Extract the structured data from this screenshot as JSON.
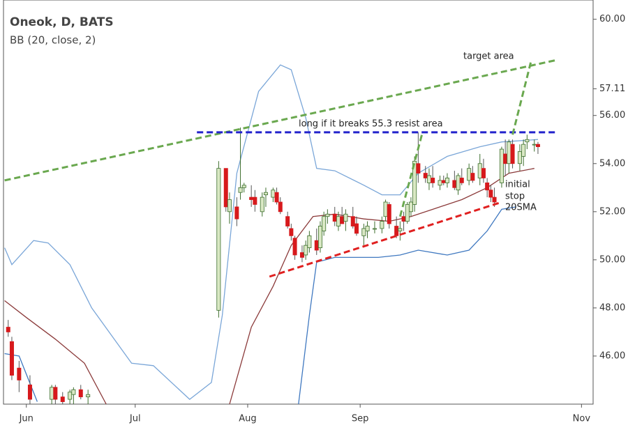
{
  "chart_data": {
    "type": "candlestick",
    "title": "Oneok, D, BATS",
    "subtitle": "BB (20, close, 2)",
    "annotations": [
      "long if it breaks 55.3 resist area",
      "target area",
      "initial",
      "stop",
      "20SMA"
    ],
    "up_color": "#3c6e2c",
    "up_fill": "#d9e8c4",
    "down_color": "#d7191c",
    "xlim": [
      -6.3,
      156.2
    ],
    "xticks": [
      {
        "value": 0,
        "label": "Jun"
      },
      {
        "value": 30,
        "label": "Jul"
      },
      {
        "value": 61,
        "label": "Aug"
      },
      {
        "value": 92,
        "label": "Sep"
      },
      {
        "value": 153,
        "label": "Nov"
      }
    ],
    "ylim": [
      44,
      60.8
    ],
    "yticks": [
      {
        "value": 46,
        "label": "46.00"
      },
      {
        "value": 48,
        "label": "48.00"
      },
      {
        "value": 50,
        "label": "50.00"
      },
      {
        "value": 52,
        "label": "52.00"
      },
      {
        "value": 54,
        "label": "54.00"
      },
      {
        "value": 56,
        "label": "56.00"
      },
      {
        "value": 57.11,
        "label": "57.11"
      },
      {
        "value": 60,
        "label": "60.00"
      }
    ],
    "x": [
      -5,
      -4,
      -2,
      1,
      7,
      8,
      10,
      12,
      13,
      15,
      17,
      53,
      55,
      56,
      58,
      59,
      60,
      62,
      63,
      65,
      66,
      68,
      69,
      70,
      72,
      73,
      74,
      76,
      77,
      78,
      80,
      81,
      82,
      83,
      85,
      86,
      87,
      88,
      90,
      91,
      93,
      94,
      96,
      98,
      99,
      100,
      102,
      103,
      104,
      105,
      106,
      107,
      108,
      110,
      111,
      112,
      114,
      115,
      116,
      118,
      119,
      120,
      122,
      123,
      125,
      126,
      127,
      128,
      129,
      131,
      132,
      133,
      134,
      136,
      137,
      138,
      140,
      141
    ],
    "open": [
      47.2,
      46.6,
      45.5,
      44.8,
      44.2,
      44.7,
      44.3,
      44.2,
      44.4,
      44.6,
      44.3,
      47.9,
      53.8,
      52.0,
      52.2,
      52.8,
      53.0,
      52.6,
      52.6,
      52.0,
      52.7,
      52.6,
      52.8,
      52.4,
      51.8,
      51.3,
      50.9,
      50.3,
      50.2,
      50.5,
      50.8,
      50.5,
      51.2,
      51.8,
      51.9,
      51.4,
      51.8,
      51.6,
      51.8,
      51.5,
      51.0,
      51.2,
      51.3,
      51.3,
      51.8,
      52.3,
      51.4,
      51.2,
      51.8,
      51.6,
      52.0,
      52.3,
      54.0,
      53.6,
      53.2,
      53.4,
      53.1,
      53.3,
      53.2,
      53.3,
      52.9,
      53.4,
      53.3,
      53.6,
      53.4,
      53.8,
      53.2,
      52.9,
      52.6,
      53.2,
      54.4,
      54.0,
      54.8,
      54.0,
      54.3,
      54.9,
      54.8,
      54.8
    ],
    "high": [
      47.5,
      46.8,
      45.8,
      45.2,
      44.8,
      44.8,
      44.5,
      44.6,
      44.7,
      44.8,
      44.6,
      54.1,
      53.8,
      52.8,
      52.6,
      55.5,
      53.2,
      53.1,
      52.9,
      52.8,
      53.0,
      53.0,
      53.0,
      52.6,
      52.0,
      51.5,
      51.0,
      50.6,
      50.8,
      51.2,
      51.3,
      51.6,
      52.0,
      52.1,
      52.2,
      52.0,
      52.2,
      52.1,
      52.2,
      51.8,
      51.5,
      51.6,
      51.6,
      51.8,
      52.5,
      52.4,
      51.8,
      51.6,
      52.0,
      52.4,
      52.6,
      54.3,
      55.3,
      53.9,
      53.8,
      53.9,
      53.5,
      53.5,
      53.6,
      53.7,
      53.6,
      53.8,
      54.0,
      53.9,
      54.4,
      54.2,
      53.4,
      53.1,
      53.0,
      54.7,
      55.0,
      55.0,
      55.0,
      54.8,
      55.0,
      55.2,
      55.0,
      54.9
    ],
    "low": [
      46.8,
      45.0,
      44.5,
      44.0,
      44.0,
      44.0,
      44.0,
      44.0,
      44.0,
      44.2,
      44.0,
      47.6,
      52.0,
      51.5,
      51.4,
      52.5,
      52.8,
      52.2,
      52.0,
      51.8,
      52.2,
      52.4,
      52.3,
      51.9,
      51.3,
      50.8,
      50.0,
      49.9,
      50.0,
      50.3,
      50.2,
      50.3,
      51.0,
      51.5,
      51.4,
      51.2,
      51.5,
      51.2,
      51.3,
      51.0,
      50.6,
      50.9,
      51.1,
      51.1,
      51.6,
      51.3,
      50.9,
      50.8,
      51.2,
      51.5,
      51.8,
      52.0,
      53.2,
      53.2,
      52.9,
      53.0,
      52.9,
      53.1,
      53.0,
      52.9,
      52.7,
      53.1,
      53.1,
      53.2,
      53.1,
      53.2,
      52.6,
      52.4,
      52.2,
      53.0,
      53.5,
      53.6,
      53.8,
      53.7,
      53.9,
      54.6,
      54.5,
      54.4
    ],
    "close": [
      47.0,
      45.2,
      45.0,
      44.2,
      44.7,
      44.2,
      44.1,
      44.5,
      44.6,
      44.3,
      44.4,
      53.8,
      52.2,
      52.5,
      51.7,
      53.0,
      53.1,
      52.5,
      52.3,
      52.6,
      52.8,
      52.9,
      52.4,
      52.0,
      51.4,
      51.0,
      50.2,
      50.1,
      50.6,
      51.0,
      50.4,
      51.4,
      51.8,
      51.9,
      51.6,
      51.8,
      51.5,
      51.9,
      51.4,
      51.1,
      51.3,
      51.4,
      51.3,
      51.6,
      52.4,
      51.5,
      51.0,
      51.3,
      51.6,
      52.3,
      52.4,
      54.1,
      53.6,
      53.4,
      53.5,
      53.2,
      53.3,
      53.2,
      53.4,
      53.0,
      53.5,
      53.2,
      53.8,
      53.3,
      54.0,
      53.4,
      52.9,
      52.6,
      52.4,
      54.6,
      54.0,
      54.9,
      54.0,
      54.5,
      54.8,
      55.0,
      54.8,
      54.7
    ],
    "lines": [
      {
        "color": "#7aa6d8",
        "x": [
          -6,
          -4,
          2,
          6,
          12,
          18,
          29,
          35,
          45,
          51,
          54,
          58,
          64,
          70,
          73,
          77,
          80,
          85,
          93,
          98,
          103,
          108,
          116,
          125,
          131,
          141
        ],
        "values": [
          50.5,
          49.8,
          50.8,
          50.7,
          49.8,
          48.0,
          45.7,
          45.6,
          44.2,
          44.9,
          47.7,
          53.6,
          57.0,
          58.1,
          57.9,
          55.9,
          53.8,
          53.7,
          53.1,
          52.7,
          52.7,
          53.6,
          54.3,
          54.7,
          54.9,
          55.0
        ]
      },
      {
        "color": "#3f78c0",
        "x": [
          -6,
          -2,
          3,
          null,
          75,
          78,
          80,
          85,
          93,
          97,
          103,
          108,
          116,
          122,
          127,
          131,
          135
        ],
        "values": [
          46.1,
          46.0,
          44.1,
          null,
          44.0,
          47.7,
          49.9,
          50.1,
          50.1,
          50.1,
          50.2,
          50.4,
          50.2,
          50.4,
          51.2,
          52.1,
          52.2
        ]
      },
      {
        "color": "#8b3a3a",
        "x": [
          -6,
          0,
          8,
          16,
          22,
          null,
          56,
          62,
          68,
          73,
          79,
          85,
          93,
          100,
          106,
          112,
          120,
          127,
          133,
          140
        ],
        "values": [
          48.3,
          47.6,
          46.7,
          45.7,
          44.0,
          null,
          44.0,
          47.2,
          48.9,
          50.6,
          51.8,
          51.9,
          51.7,
          51.6,
          51.8,
          52.1,
          52.5,
          53.0,
          53.6,
          53.8
        ]
      }
    ],
    "trendlines": [
      {
        "color": "#6aa84f",
        "x": [
          -6,
          146
        ],
        "values": [
          53.3,
          58.3
        ]
      },
      {
        "color": "#2222cc",
        "x": [
          47,
          146
        ],
        "values": [
          55.3,
          55.3
        ]
      },
      {
        "color": "#e02020",
        "x": [
          67,
          131
        ],
        "values": [
          49.3,
          52.4
        ]
      },
      {
        "color": "#6aa84f",
        "x": [
          103,
          109
        ],
        "values": [
          51.8,
          55.2
        ]
      },
      {
        "color": "#6aa84f",
        "x": [
          134,
          139
        ],
        "values": [
          55.2,
          58.2
        ]
      }
    ]
  }
}
